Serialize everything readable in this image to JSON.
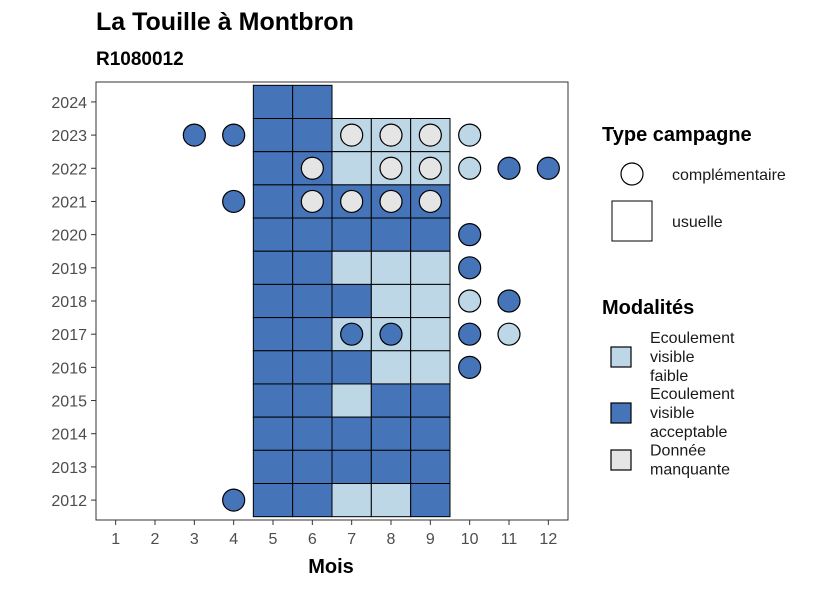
{
  "chart_data": {
    "type": "heatmap",
    "title": "La Touille à Montbron",
    "subtitle": "R1080012",
    "xlabel": "Mois",
    "ylabel": "",
    "x_ticks": [
      1,
      2,
      3,
      4,
      5,
      6,
      7,
      8,
      9,
      10,
      11,
      12
    ],
    "y_ticks": [
      2012,
      2013,
      2014,
      2015,
      2016,
      2017,
      2018,
      2019,
      2020,
      2021,
      2022,
      2023,
      2024
    ],
    "xlim": [
      0.5,
      12.5
    ],
    "ylim": [
      2011.4,
      2024.6
    ],
    "colors": {
      "faible": "#bdd7e7",
      "acceptable": "#4575b8",
      "manquante": "#e5e5e5"
    },
    "legend_type": {
      "title": "Type campagne",
      "items": [
        {
          "key": "complementaire",
          "label": "complémentaire",
          "shape": "circle"
        },
        {
          "key": "usuelle",
          "label": "usuelle",
          "shape": "square"
        }
      ]
    },
    "legend_mod": {
      "title": "Modalités",
      "items": [
        {
          "key": "faible",
          "lines": [
            "Ecoulement",
            "visible",
            "faible"
          ]
        },
        {
          "key": "acceptable",
          "lines": [
            "Ecoulement",
            "visible",
            "acceptable"
          ]
        },
        {
          "key": "manquante",
          "lines": [
            "Donnée",
            "manquante"
          ]
        }
      ]
    },
    "usuelle": [
      {
        "year": 2024,
        "m": [
          [
            "acceptable",
            "acceptable"
          ]
        ]
      },
      {
        "year": 2023,
        "m": [
          [
            "acceptable",
            "acceptable",
            "faible",
            "faible",
            "faible"
          ]
        ]
      },
      {
        "year": 2022,
        "m": [
          [
            "acceptable",
            "acceptable",
            "faible",
            "faible",
            "faible"
          ]
        ]
      },
      {
        "year": 2021,
        "m": [
          [
            "acceptable",
            "acceptable",
            "acceptable",
            "acceptable",
            "acceptable"
          ]
        ]
      },
      {
        "year": 2020,
        "m": [
          [
            "acceptable",
            "acceptable",
            "acceptable",
            "acceptable",
            "acceptable"
          ]
        ]
      },
      {
        "year": 2019,
        "m": [
          [
            "acceptable",
            "acceptable",
            "faible",
            "faible",
            "faible"
          ]
        ]
      },
      {
        "year": 2018,
        "m": [
          [
            "acceptable",
            "acceptable",
            "acceptable",
            "faible",
            "faible"
          ]
        ]
      },
      {
        "year": 2017,
        "m": [
          [
            "acceptable",
            "acceptable",
            "faible",
            "faible",
            "faible"
          ]
        ]
      },
      {
        "year": 2016,
        "m": [
          [
            "acceptable",
            "acceptable",
            "acceptable",
            "faible",
            "faible"
          ]
        ]
      },
      {
        "year": 2015,
        "m": [
          [
            "acceptable",
            "acceptable",
            "faible",
            "acceptable",
            "acceptable"
          ]
        ]
      },
      {
        "year": 2014,
        "m": [
          [
            "acceptable",
            "acceptable",
            "acceptable",
            "acceptable",
            "acceptable"
          ]
        ]
      },
      {
        "year": 2013,
        "m": [
          [
            "acceptable",
            "acceptable",
            "acceptable",
            "acceptable",
            "acceptable"
          ]
        ]
      },
      {
        "year": 2012,
        "m": [
          [
            "acceptable",
            "acceptable",
            "faible",
            "faible",
            "acceptable"
          ]
        ]
      }
    ],
    "complementaire": [
      {
        "year": 2023,
        "month": 3,
        "value": "acceptable"
      },
      {
        "year": 2023,
        "month": 4,
        "value": "acceptable"
      },
      {
        "year": 2023,
        "month": 7,
        "value": "manquante"
      },
      {
        "year": 2023,
        "month": 8,
        "value": "manquante"
      },
      {
        "year": 2023,
        "month": 9,
        "value": "manquante"
      },
      {
        "year": 2023,
        "month": 10,
        "value": "faible"
      },
      {
        "year": 2022,
        "month": 6,
        "value": "manquante"
      },
      {
        "year": 2022,
        "month": 8,
        "value": "manquante"
      },
      {
        "year": 2022,
        "month": 9,
        "value": "manquante"
      },
      {
        "year": 2022,
        "month": 10,
        "value": "faible"
      },
      {
        "year": 2022,
        "month": 11,
        "value": "acceptable"
      },
      {
        "year": 2022,
        "month": 12,
        "value": "acceptable"
      },
      {
        "year": 2021,
        "month": 4,
        "value": "acceptable"
      },
      {
        "year": 2021,
        "month": 6,
        "value": "manquante"
      },
      {
        "year": 2021,
        "month": 7,
        "value": "manquante"
      },
      {
        "year": 2021,
        "month": 8,
        "value": "manquante"
      },
      {
        "year": 2021,
        "month": 9,
        "value": "manquante"
      },
      {
        "year": 2020,
        "month": 10,
        "value": "acceptable"
      },
      {
        "year": 2019,
        "month": 10,
        "value": "acceptable"
      },
      {
        "year": 2018,
        "month": 10,
        "value": "faible"
      },
      {
        "year": 2018,
        "month": 11,
        "value": "acceptable"
      },
      {
        "year": 2017,
        "month": 7,
        "value": "acceptable"
      },
      {
        "year": 2017,
        "month": 8,
        "value": "acceptable"
      },
      {
        "year": 2017,
        "month": 10,
        "value": "acceptable"
      },
      {
        "year": 2017,
        "month": 11,
        "value": "faible"
      },
      {
        "year": 2016,
        "month": 10,
        "value": "acceptable"
      },
      {
        "year": 2012,
        "month": 4,
        "value": "acceptable"
      }
    ]
  }
}
